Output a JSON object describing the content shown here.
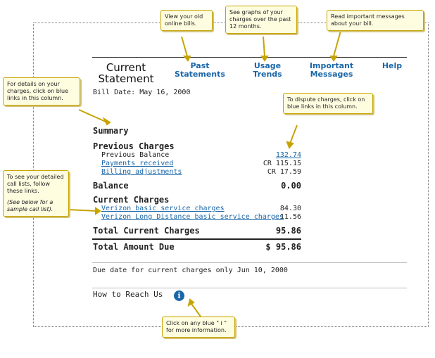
{
  "tabs": {
    "current": "Current Statement",
    "past": "Past Statements",
    "usage": "Usage Trends",
    "messages": "Important Messages",
    "help": "Help"
  },
  "statement": {
    "bill_date": "Bill Date: May 16, 2000",
    "summary_title": "Summary",
    "previous_charges_title": "Previous Charges",
    "previous_balance_label": "Previous Balance",
    "previous_balance_amount": "132.74",
    "payments_label": "Payments received",
    "payments_amount": "CR 115.15",
    "adjustments_label": "Billing adjustments",
    "adjustments_amount": "CR 17.59",
    "balance_label": "Balance",
    "balance_amount": "0.00",
    "current_charges_title": "Current Charges",
    "verizon_basic_label": "Verizon basic service charges",
    "verizon_basic_amount": "84.30",
    "verizon_ld_label": "Verizon Long Distance basic service charges",
    "verizon_ld_amount": "11.56",
    "total_current_label": "Total Current Charges",
    "total_current_amount": "95.86",
    "total_due_label": "Total Amount Due",
    "total_due_amount": "$ 95.86",
    "due_date": "Due date for current charges only Jun 10, 2000",
    "how_to_reach": "How to Reach Us",
    "info_glyph": "i"
  },
  "callouts": {
    "old_bills": "View your old online bills.",
    "graphs": "See graphs of your charges over the past 12 months.",
    "messages": "Read important messages about your bill.",
    "details": "For details on your charges, click on blue links in this column.",
    "dispute": "To dispute charges, click on blue links in this column.",
    "call_lists": "To see your detailed call lists, follow these links.",
    "call_lists_note": "(See below for a sample call list).",
    "blue_i": "Click on any blue \" i \" for more information."
  },
  "colors": {
    "link": "#1a66a8",
    "callout_bg": "#fffde0",
    "callout_border": "#c6a400"
  }
}
